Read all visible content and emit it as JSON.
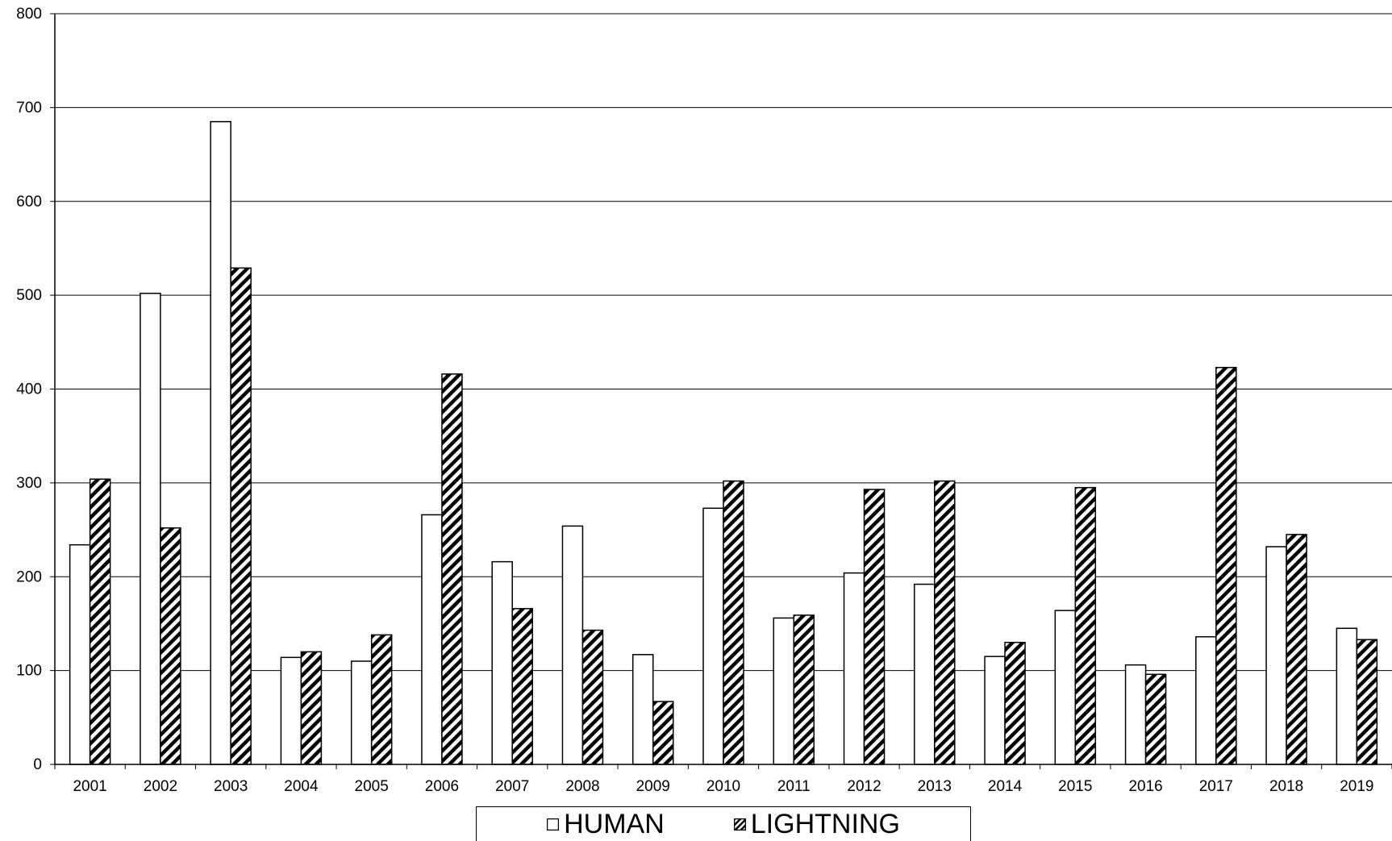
{
  "chart_data": {
    "type": "bar",
    "categories": [
      "2001",
      "2002",
      "2003",
      "2004",
      "2005",
      "2006",
      "2007",
      "2008",
      "2009",
      "2010",
      "2011",
      "2012",
      "2013",
      "2014",
      "2015",
      "2016",
      "2017",
      "2018",
      "2019"
    ],
    "series": [
      {
        "name": "HUMAN",
        "values": [
          234,
          502,
          685,
          114,
          110,
          266,
          216,
          254,
          117,
          273,
          156,
          204,
          192,
          115,
          164,
          106,
          136,
          232,
          145
        ],
        "pattern": "solid-white"
      },
      {
        "name": "LIGHTNING",
        "values": [
          304,
          252,
          529,
          120,
          138,
          416,
          166,
          143,
          67,
          302,
          159,
          293,
          302,
          130,
          295,
          96,
          423,
          245,
          133
        ],
        "pattern": "diagonal-hatch"
      }
    ],
    "ylim": [
      0,
      800
    ],
    "yticks": [
      0,
      100,
      200,
      300,
      400,
      500,
      600,
      700,
      800
    ],
    "grid": true,
    "legend_position": "bottom-center",
    "colors": {
      "bar_outline": "#000000",
      "bar_fill": "#ffffff",
      "grid": "#000000"
    }
  }
}
